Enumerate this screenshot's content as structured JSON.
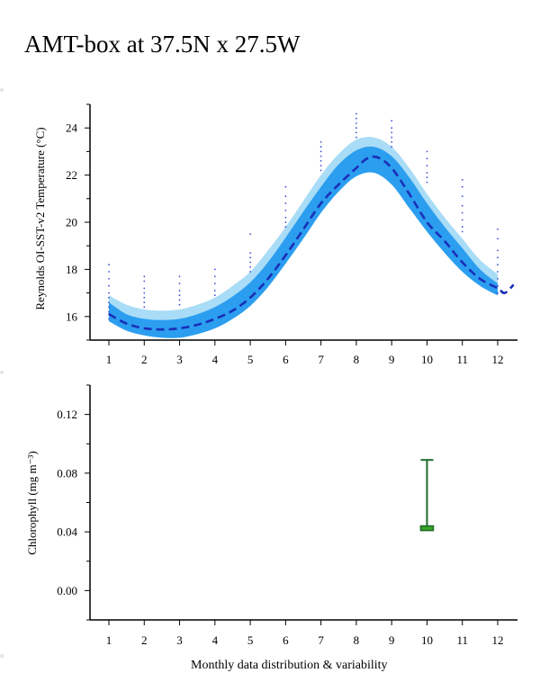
{
  "page": {
    "title": "AMT-box at 37.5N x 27.5W",
    "caption": "Monthly data distribution & variability"
  },
  "colors": {
    "outer_band": "#a9dcf6",
    "inner_band": "#2b9ef0",
    "mean_line": "#1a2fb8",
    "obs_dots": "#3a4fd0",
    "chl_whisker": "#1f6b2a",
    "chl_box": "#3aa626"
  },
  "chart_data": [
    {
      "type": "line",
      "ylabel": "Reynolds OI-SST-v2 Temperature (°C)",
      "xlabel": "",
      "x_ticks": [
        "1",
        "2",
        "3",
        "4",
        "5",
        "6",
        "7",
        "8",
        "9",
        "10",
        "11",
        "12"
      ],
      "y_ticks": [
        "16",
        "18",
        "20",
        "22",
        "24"
      ],
      "xlim": [
        0.5,
        12.5
      ],
      "ylim": [
        15.0,
        25.0
      ],
      "series": [
        {
          "role": "mean (dashed)",
          "x": [
            1,
            1.5,
            2,
            2.5,
            3,
            3.5,
            4,
            4.5,
            5,
            5.5,
            6,
            6.5,
            7,
            7.5,
            8,
            8.3,
            8.6,
            9,
            9.5,
            10,
            10.5,
            11,
            11.5,
            12,
            12.2,
            12.45
          ],
          "y": [
            16.1,
            15.7,
            15.5,
            15.45,
            15.5,
            15.65,
            15.9,
            16.25,
            16.8,
            17.6,
            18.6,
            19.7,
            20.8,
            21.6,
            22.3,
            22.7,
            22.75,
            22.3,
            21.2,
            20.0,
            19.2,
            18.3,
            17.6,
            17.2,
            17.0,
            17.35
          ]
        },
        {
          "role": "outer band upper",
          "x": [
            1,
            1.5,
            2,
            2.5,
            3,
            3.5,
            4,
            4.5,
            5,
            5.5,
            6,
            6.5,
            7,
            7.5,
            8,
            8.5,
            9,
            9.5,
            10,
            10.5,
            11,
            11.5,
            12
          ],
          "y": [
            16.9,
            16.5,
            16.3,
            16.25,
            16.3,
            16.5,
            16.8,
            17.3,
            17.9,
            18.8,
            19.8,
            20.9,
            22.0,
            22.9,
            23.5,
            23.6,
            23.2,
            22.3,
            21.2,
            20.2,
            19.3,
            18.4,
            17.8
          ]
        },
        {
          "role": "outer band lower",
          "x": [
            1,
            1.5,
            2,
            2.5,
            3,
            3.5,
            4,
            4.5,
            5,
            5.5,
            6,
            6.5,
            7,
            7.5,
            8,
            8.5,
            9,
            9.5,
            10,
            10.5,
            11,
            11.5,
            12
          ],
          "y": [
            15.8,
            15.4,
            15.2,
            15.1,
            15.1,
            15.25,
            15.5,
            15.9,
            16.45,
            17.25,
            18.25,
            19.3,
            20.4,
            21.3,
            21.95,
            22.1,
            21.6,
            20.6,
            19.6,
            18.7,
            17.9,
            17.3,
            16.9
          ]
        },
        {
          "role": "inner band upper",
          "x": [
            1,
            1.5,
            2,
            2.5,
            3,
            3.5,
            4,
            4.5,
            5,
            5.5,
            6,
            6.5,
            7,
            7.5,
            8,
            8.5,
            9,
            9.5,
            10,
            10.5,
            11,
            11.5,
            12
          ],
          "y": [
            16.6,
            16.1,
            15.9,
            15.85,
            15.9,
            16.1,
            16.4,
            16.85,
            17.45,
            18.3,
            19.35,
            20.45,
            21.5,
            22.45,
            23.05,
            23.2,
            22.8,
            21.9,
            20.8,
            19.8,
            18.9,
            18.0,
            17.4
          ]
        }
      ],
      "observations": [
        {
          "month": 1,
          "y": [
            15.9,
            16.1,
            16.2,
            16.4,
            16.6,
            16.8,
            17.0,
            17.3,
            17.6,
            17.9,
            18.2
          ]
        },
        {
          "month": 2,
          "y": [
            16.4,
            16.6,
            16.8,
            17.0,
            17.2,
            17.5,
            17.7
          ]
        },
        {
          "month": 3,
          "y": [
            16.5,
            16.7,
            16.9,
            17.1,
            17.4,
            17.7
          ]
        },
        {
          "month": 4,
          "y": [
            16.9,
            17.1,
            17.4,
            17.7,
            18.0
          ]
        },
        {
          "month": 5,
          "y": [
            17.9,
            18.1,
            18.3,
            18.5,
            18.7,
            19.5
          ]
        },
        {
          "month": 6,
          "y": [
            19.8,
            20.0,
            20.2,
            20.5,
            20.8,
            21.1,
            21.5
          ]
        },
        {
          "month": 7,
          "y": [
            22.2,
            22.4,
            22.6,
            22.8,
            23.0,
            23.2,
            23.4
          ]
        },
        {
          "month": 8,
          "y": [
            23.6,
            23.8,
            24.0,
            24.2,
            24.4,
            24.6
          ]
        },
        {
          "month": 9,
          "y": [
            23.2,
            23.4,
            23.6,
            23.8,
            24.0,
            24.3
          ]
        },
        {
          "month": 10,
          "y": [
            21.7,
            21.9,
            22.1,
            22.4,
            22.7,
            23.0
          ]
        },
        {
          "month": 11,
          "y": [
            19.6,
            19.8,
            20.1,
            20.4,
            20.7,
            21.1,
            21.5,
            21.8
          ]
        },
        {
          "month": 12,
          "y": [
            17.0,
            17.3,
            17.6,
            17.9,
            18.2,
            18.5,
            18.8,
            19.3,
            19.7
          ]
        }
      ],
      "grid": false
    },
    {
      "type": "box",
      "ylabel": "Chlorophyll (mg m⁻³)",
      "xlabel": "",
      "x_ticks": [
        "1",
        "2",
        "3",
        "4",
        "5",
        "6",
        "7",
        "8",
        "9",
        "10",
        "11",
        "12"
      ],
      "y_ticks": [
        "0.00",
        "0.04",
        "0.08",
        "0.12"
      ],
      "xlim": [
        0.5,
        12.5
      ],
      "ylim": [
        -0.02,
        0.14
      ],
      "boxes": [
        {
          "month": 10,
          "whisker_low": 0.041,
          "q1": 0.041,
          "median": 0.042,
          "q3": 0.044,
          "whisker_high": 0.089
        }
      ],
      "grid": false
    }
  ]
}
